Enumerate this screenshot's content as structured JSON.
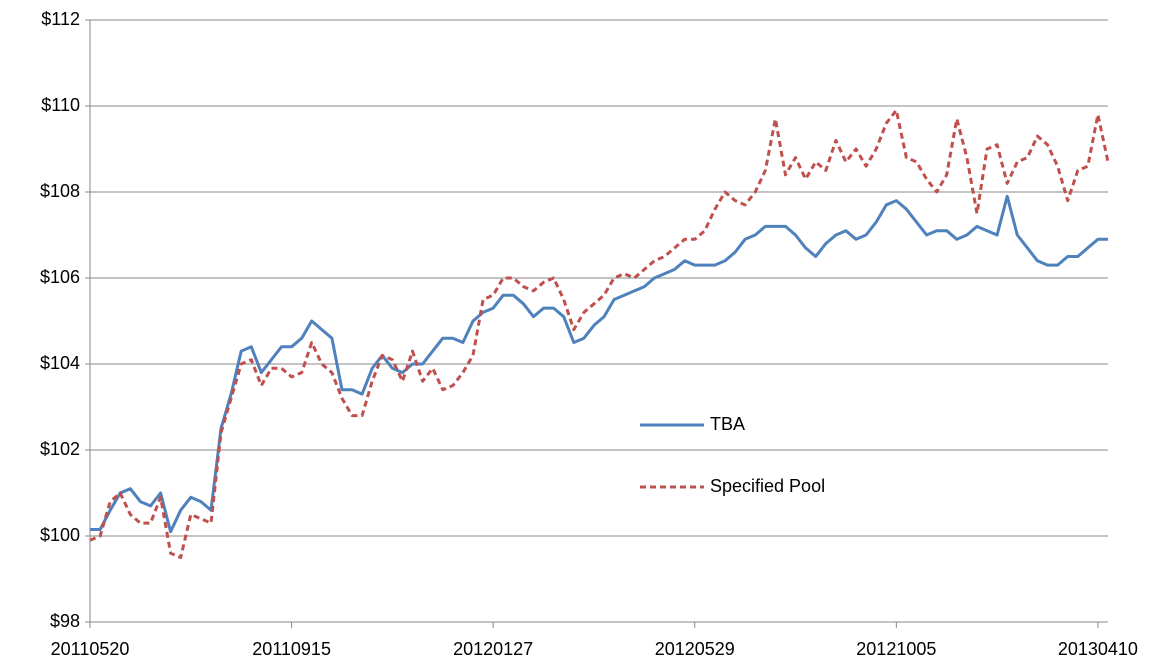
{
  "chart_data": {
    "type": "line",
    "categories": [
      "20110520",
      null,
      null,
      null,
      null,
      null,
      null,
      null,
      null,
      null,
      null,
      null,
      null,
      null,
      null,
      null,
      null,
      null,
      null,
      null,
      "20110915",
      null,
      null,
      null,
      null,
      null,
      null,
      null,
      null,
      null,
      null,
      null,
      null,
      null,
      null,
      null,
      null,
      null,
      null,
      null,
      "20120127",
      null,
      null,
      null,
      null,
      null,
      null,
      null,
      null,
      null,
      null,
      null,
      null,
      null,
      null,
      null,
      null,
      null,
      null,
      null,
      "20120529",
      null,
      null,
      null,
      null,
      null,
      null,
      null,
      null,
      null,
      null,
      null,
      null,
      null,
      null,
      null,
      null,
      null,
      null,
      null,
      "20121005",
      null,
      null,
      null,
      null,
      null,
      null,
      null,
      null,
      null,
      null,
      null,
      null,
      null,
      null,
      null,
      null,
      null,
      null,
      null,
      "20130410",
      null
    ],
    "series": [
      {
        "name": "TBA",
        "color": "#4f81bd",
        "style": "solid",
        "values": [
          100.15,
          100.15,
          100.6,
          101.0,
          101.1,
          100.8,
          100.7,
          101.0,
          100.1,
          100.6,
          100.9,
          100.8,
          100.6,
          102.5,
          103.3,
          104.3,
          104.4,
          103.8,
          104.1,
          104.4,
          104.4,
          104.6,
          105.0,
          104.8,
          104.6,
          103.4,
          103.4,
          103.3,
          103.9,
          104.2,
          103.9,
          103.8,
          104.0,
          104.0,
          104.3,
          104.6,
          104.6,
          104.5,
          105.0,
          105.2,
          105.3,
          105.6,
          105.6,
          105.4,
          105.1,
          105.3,
          105.3,
          105.1,
          104.5,
          104.6,
          104.9,
          105.1,
          105.5,
          105.6,
          105.7,
          105.8,
          106.0,
          106.1,
          106.2,
          106.4,
          106.3,
          106.3,
          106.3,
          106.4,
          106.6,
          106.9,
          107.0,
          107.2,
          107.2,
          107.2,
          107.0,
          106.7,
          106.5,
          106.8,
          107.0,
          107.1,
          106.9,
          107.0,
          107.3,
          107.7,
          107.8,
          107.6,
          107.3,
          107.0,
          107.1,
          107.1,
          106.9,
          107.0,
          107.2,
          107.1,
          107.0,
          107.9,
          107.0,
          106.7,
          106.4,
          106.3,
          106.3,
          106.5,
          106.5,
          106.7,
          106.9,
          106.9
        ]
      },
      {
        "name": "Specified Pool",
        "color": "#c0504d",
        "style": "dashed",
        "values": [
          99.9,
          100.0,
          100.8,
          101.0,
          100.5,
          100.3,
          100.3,
          100.9,
          99.6,
          99.5,
          100.5,
          100.4,
          100.3,
          102.4,
          103.2,
          104.0,
          104.1,
          103.5,
          103.9,
          103.9,
          103.7,
          103.8,
          104.5,
          104.0,
          103.8,
          103.2,
          102.8,
          102.8,
          103.6,
          104.2,
          104.1,
          103.6,
          104.3,
          103.6,
          103.9,
          103.4,
          103.5,
          103.8,
          104.2,
          105.5,
          105.6,
          106.0,
          106.0,
          105.8,
          105.7,
          105.9,
          106.0,
          105.5,
          104.8,
          105.2,
          105.4,
          105.6,
          106.0,
          106.1,
          106.0,
          106.2,
          106.4,
          106.5,
          106.7,
          106.9,
          106.9,
          107.1,
          107.6,
          108.0,
          107.8,
          107.7,
          108.0,
          108.5,
          109.7,
          108.4,
          108.8,
          108.3,
          108.7,
          108.5,
          109.2,
          108.7,
          109.0,
          108.6,
          109.0,
          109.6,
          109.9,
          108.8,
          108.7,
          108.3,
          108.0,
          108.4,
          109.7,
          108.8,
          107.5,
          109.0,
          109.1,
          108.2,
          108.7,
          108.8,
          109.3,
          109.1,
          108.6,
          107.8,
          108.5,
          108.6,
          109.8,
          108.7
        ]
      }
    ],
    "ylim": [
      98,
      112
    ],
    "yticks": [
      {
        "value": 98,
        "label": "$98"
      },
      {
        "value": 100,
        "label": "$100"
      },
      {
        "value": 102,
        "label": "$102"
      },
      {
        "value": 104,
        "label": "$104"
      },
      {
        "value": 106,
        "label": "$106"
      },
      {
        "value": 108,
        "label": "$108"
      },
      {
        "value": 110,
        "label": "$110"
      },
      {
        "value": 112,
        "label": "$112"
      }
    ],
    "grid": true,
    "legend": "right"
  }
}
